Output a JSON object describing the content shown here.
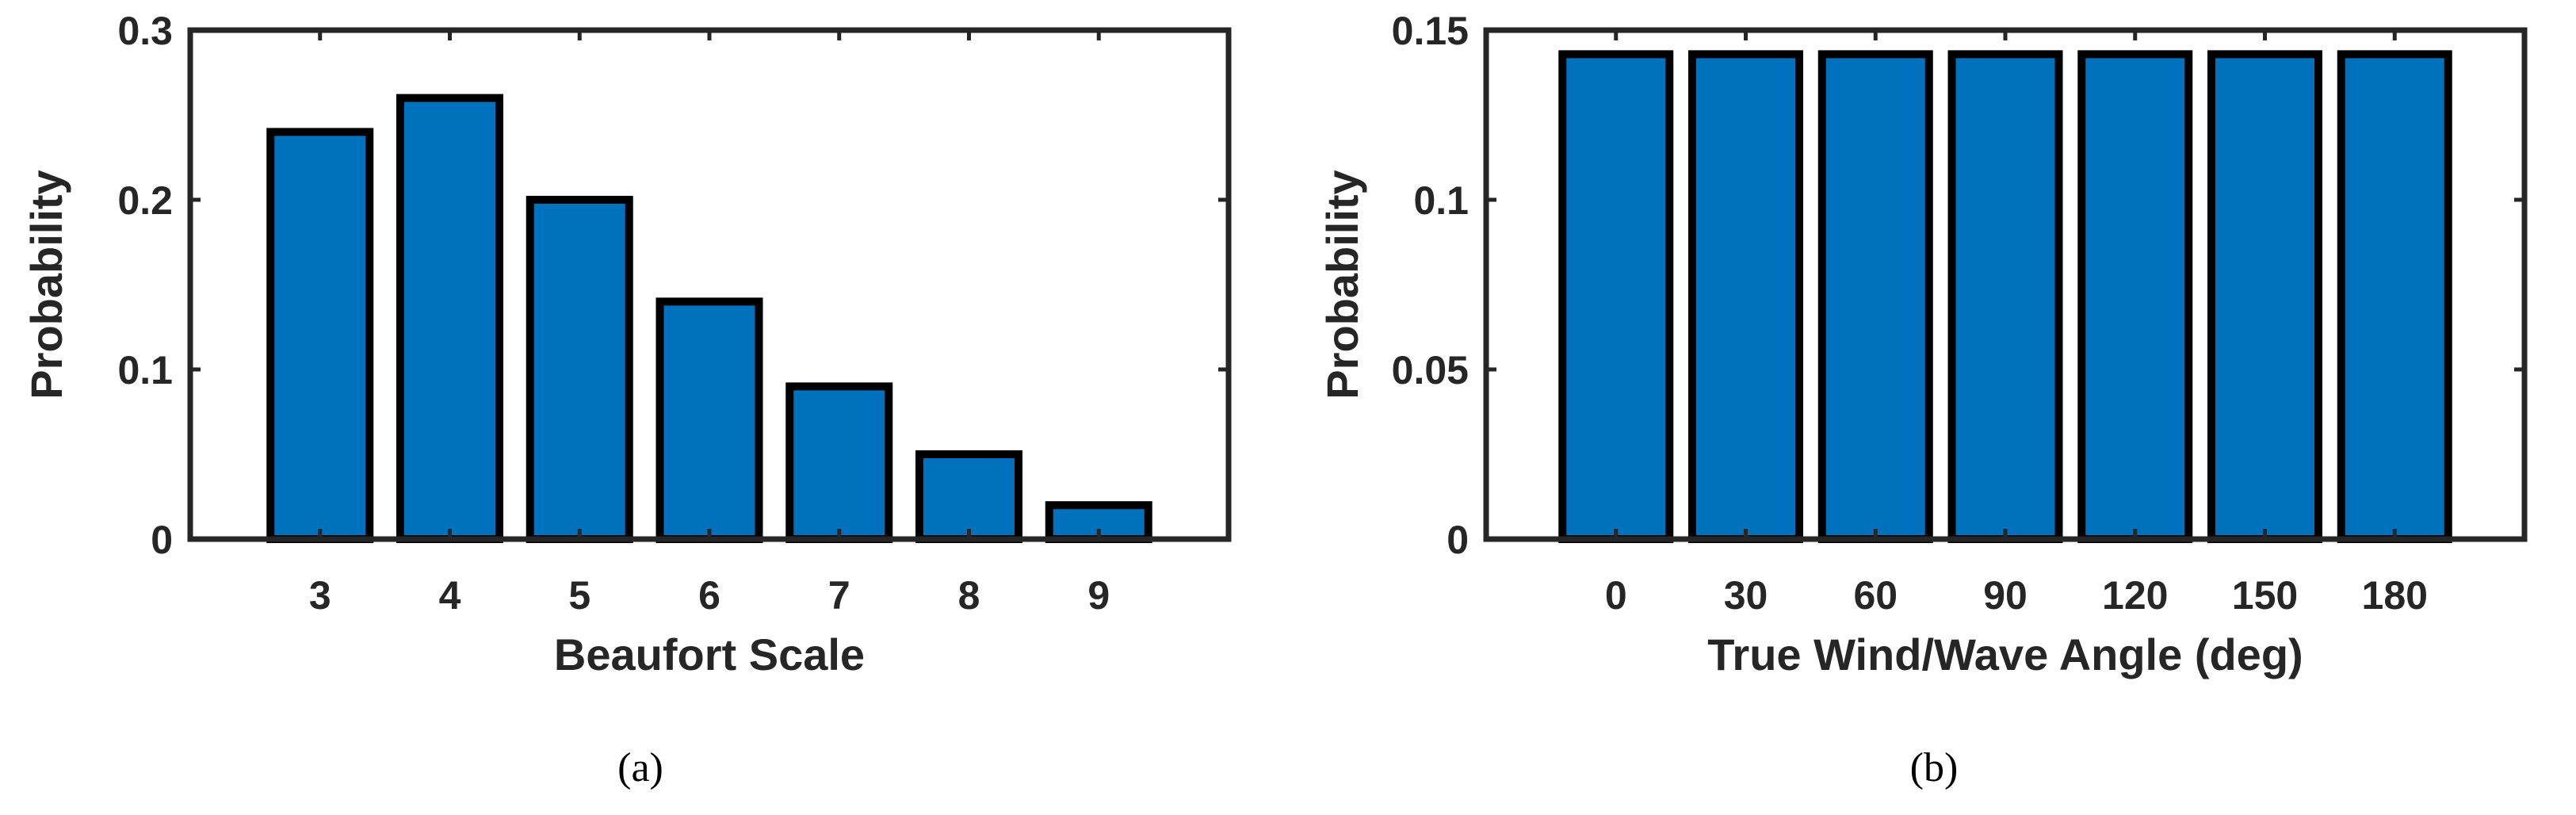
{
  "colors": {
    "bar_fill": "#0072BD",
    "bar_edge": "#000000",
    "axis": "#262626",
    "background": "#ffffff"
  },
  "chart_data": [
    {
      "type": "bar",
      "caption": "(a)",
      "title": "",
      "xlabel": "Beaufort Scale",
      "ylabel": "Probability",
      "categories": [
        "3",
        "4",
        "5",
        "6",
        "7",
        "8",
        "9"
      ],
      "values": [
        0.24,
        0.26,
        0.2,
        0.14,
        0.09,
        0.05,
        0.02
      ],
      "ylim": [
        0,
        0.3
      ],
      "yticks": [
        0,
        0.1,
        0.2,
        0.3
      ],
      "ytick_labels": [
        "0",
        "0.1",
        "0.2",
        "0.3"
      ],
      "grid": false,
      "legend": "none"
    },
    {
      "type": "bar",
      "caption": "(b)",
      "title": "",
      "xlabel": "True Wind/Wave Angle (deg)",
      "ylabel": "Probability",
      "categories": [
        "0",
        "30",
        "60",
        "90",
        "120",
        "150",
        "180"
      ],
      "values": [
        0.1429,
        0.1429,
        0.1429,
        0.1429,
        0.1429,
        0.1429,
        0.1429
      ],
      "ylim": [
        0,
        0.15
      ],
      "yticks": [
        0,
        0.05,
        0.1,
        0.15
      ],
      "ytick_labels": [
        "0",
        "0.05",
        "0.1",
        "0.15"
      ],
      "grid": false,
      "legend": "none"
    }
  ]
}
